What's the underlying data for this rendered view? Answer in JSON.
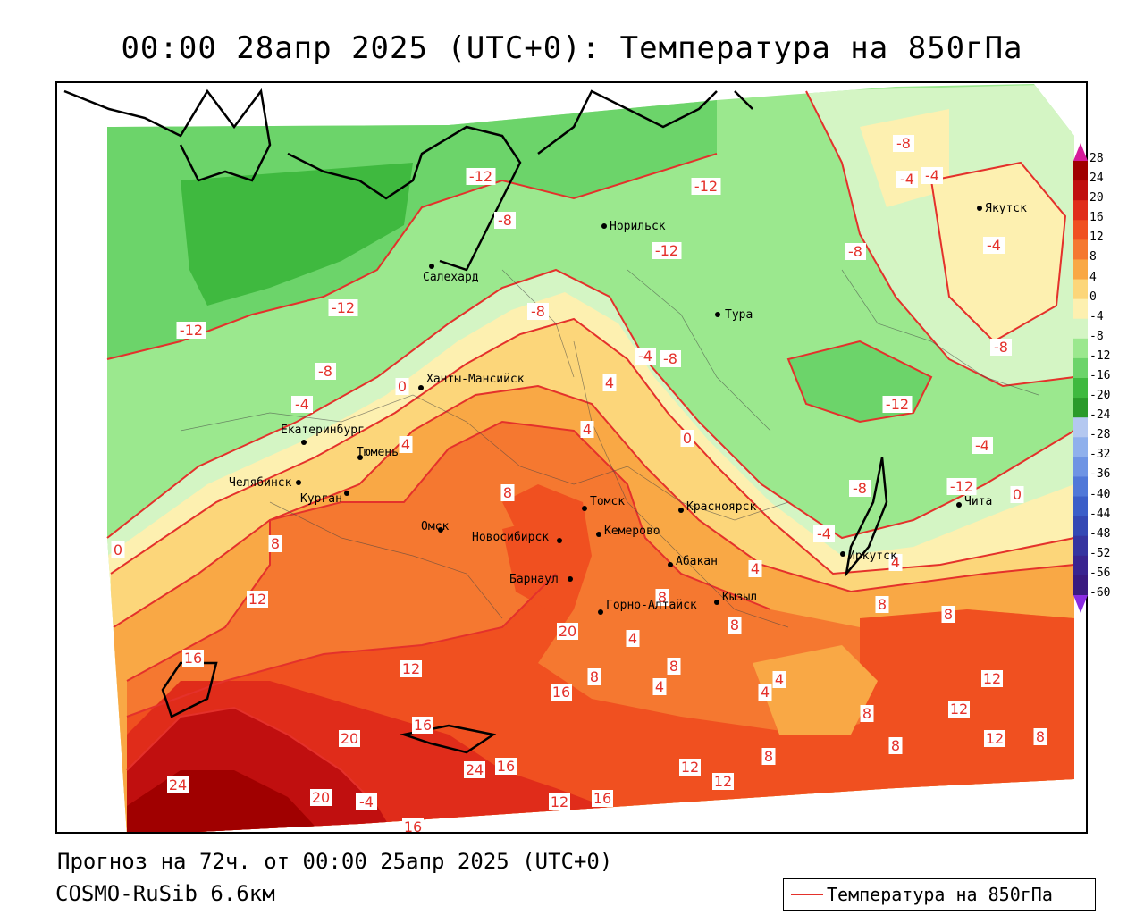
{
  "title": "00:00 28апр 2025 (UTC+0): Температура на 850гПа",
  "footer": {
    "forecast": "Прогноз на 72ч. от 00:00 25апр 2025 (UTC+0)",
    "model": "COSMO-RuSib 6.6км"
  },
  "legend": {
    "label": "Температура на 850гПа",
    "line_color": "#e4312b"
  },
  "colorbar": {
    "ticks": [
      "28",
      "24",
      "20",
      "16",
      "12",
      "8",
      "4",
      "0",
      "-4",
      "-8",
      "-12",
      "-16",
      "-20",
      "-24",
      "-28",
      "-32",
      "-36",
      "-40",
      "-44",
      "-48",
      "-52",
      "-56",
      "-60"
    ],
    "colors": [
      "#a00000",
      "#c00f0f",
      "#e02c1a",
      "#f05020",
      "#f57830",
      "#f9a845",
      "#fcd67a",
      "#fdf0b0",
      "#d4f5c4",
      "#9be88e",
      "#6cd46a",
      "#3fb93f",
      "#2a9a2a",
      "#b4c8f0",
      "#8fb0ec",
      "#6e94e4",
      "#5078d8",
      "#3b5ec8",
      "#3448b4",
      "#3634a0",
      "#3a2490",
      "#3a1a80"
    ]
  },
  "cities": [
    {
      "name": "Якутск"
    },
    {
      "name": "Норильск"
    },
    {
      "name": "Салехард"
    },
    {
      "name": "Тура"
    },
    {
      "name": "Ханты-Мансийск"
    },
    {
      "name": "Екатеринбург"
    },
    {
      "name": "Тюмень"
    },
    {
      "name": "Челябинск"
    },
    {
      "name": "Курган"
    },
    {
      "name": "Омск"
    },
    {
      "name": "Новосибирск"
    },
    {
      "name": "Томск"
    },
    {
      "name": "Кемерово"
    },
    {
      "name": "Красноярск"
    },
    {
      "name": "Абакан"
    },
    {
      "name": "Барнаул"
    },
    {
      "name": "Горно-Алтайск"
    },
    {
      "name": "Кызыл"
    },
    {
      "name": "Иркутск"
    },
    {
      "name": "Чита"
    }
  ],
  "contour_labels": [
    "-12",
    "-12",
    "-12",
    "-12",
    "-12",
    "-12",
    "-8",
    "-8",
    "-8",
    "-8",
    "-4",
    "-4",
    "-4",
    "-4",
    "-4",
    "-4",
    "-8",
    "-8",
    "-4",
    "-8",
    "-12",
    "-8",
    "0",
    "0",
    "0",
    "0",
    "4",
    "4",
    "4",
    "4",
    "4",
    "4",
    "4",
    "4",
    "4",
    "8",
    "8",
    "8",
    "8",
    "8",
    "8",
    "8",
    "8",
    "8",
    "8",
    "8",
    "8",
    "12",
    "12",
    "12",
    "12",
    "12",
    "12",
    "12",
    "12",
    "16",
    "16",
    "16",
    "16",
    "16",
    "16",
    "20",
    "20",
    "24",
    "24",
    "20",
    "-4"
  ]
}
